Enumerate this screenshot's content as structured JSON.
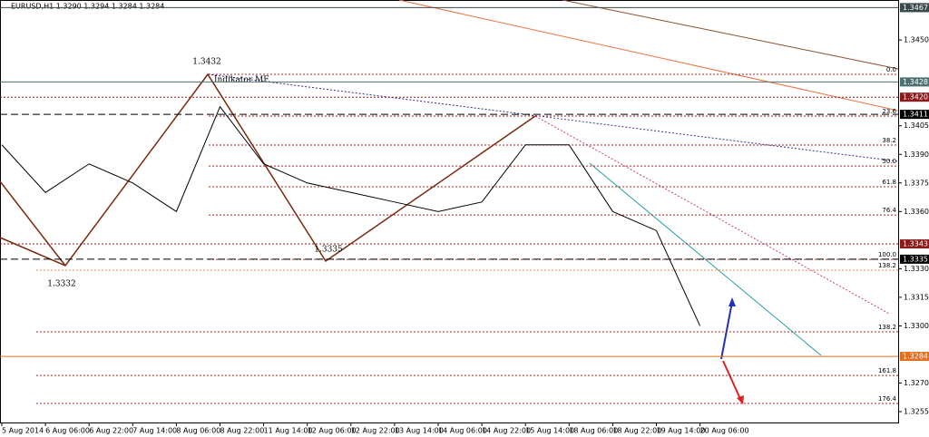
{
  "chart_data": {
    "type": "line",
    "title": "EURUSD,H1  1.3290 1.3294 1.3284 1.3284",
    "categories": [
      "5 Aug 2014",
      "6 Aug 06:00",
      "6 Aug 22:00",
      "7 Aug 14:00",
      "8 Aug 06:00",
      "8 Aug 22:00",
      "11 Aug 14:00",
      "12 Aug 06:00",
      "12 Aug 22:00",
      "13 Aug 14:00",
      "14 Aug 06:00",
      "14 Aug 22:00",
      "15 Aug 14:00",
      "18 Aug 06:00",
      "18 Aug 22:00",
      "19 Aug 14:00",
      "20 Aug 06:00"
    ],
    "series": [
      {
        "name": "EURUSD,H1",
        "color": "#000000",
        "values": [
          1.3395,
          1.337,
          1.3385,
          1.3375,
          1.336,
          1.3415,
          1.3385,
          1.3375,
          1.337,
          1.3365,
          1.336,
          1.3365,
          1.3395,
          1.3395,
          1.336,
          1.335,
          1.33
        ]
      }
    ],
    "ylim": [
      1.32493,
      1.3471
    ],
    "yticks": [
      {
        "value": 1.345,
        "label": "1.3450"
      },
      {
        "value": 1.3405,
        "label": "1.3405"
      },
      {
        "value": 1.339,
        "label": "1.3390"
      },
      {
        "value": 1.3375,
        "label": "1.3375"
      },
      {
        "value": 1.336,
        "label": "1.3360"
      },
      {
        "value": 1.333,
        "label": "1.3330"
      },
      {
        "value": 1.3315,
        "label": "1.3315"
      },
      {
        "value": 1.33,
        "label": "1.3300"
      },
      {
        "value": 1.327,
        "label": "1.3270"
      },
      {
        "value": 1.3255,
        "label": "1.3255"
      }
    ],
    "levels": [
      {
        "value": 1.3467,
        "label": "1.3467",
        "color": "#3a4a4a"
      },
      {
        "value": 1.3428,
        "label": "1.3428",
        "color": "#4f7070"
      },
      {
        "value": 1.342,
        "label": "1.3420",
        "color": "#8b1a1a"
      },
      {
        "value": 1.3411,
        "label": "1.3411",
        "color": "#000000"
      },
      {
        "value": 1.3343,
        "label": "1.3343",
        "color": "#8b1a1a"
      },
      {
        "value": 1.3335,
        "label": "1.3335",
        "color": "#000000"
      },
      {
        "value": 1.3284,
        "label": "1.3284",
        "color": "#e07020"
      }
    ],
    "fib": [
      {
        "label": "0.0",
        "price": 1.3432
      },
      {
        "label": "23.6",
        "price": 1.34101
      },
      {
        "label": "38.2",
        "price": 1.33949
      },
      {
        "label": "50.0",
        "price": 1.33839
      },
      {
        "label": "61.8",
        "price": 1.3373
      },
      {
        "label": "76.4",
        "price": 1.33582
      },
      {
        "label": "100.0",
        "price": 1.33349
      },
      {
        "label": "138.2",
        "price": 1.33292
      },
      {
        "label": "138.2",
        "price": 1.32969
      },
      {
        "label": "161.8",
        "price": 1.3274
      },
      {
        "label": "176.4",
        "price": 1.32593
      }
    ],
    "swing_labels": [
      1.3432,
      1.3332,
      1.3335
    ],
    "indicator_label": "Indikator MF."
  }
}
